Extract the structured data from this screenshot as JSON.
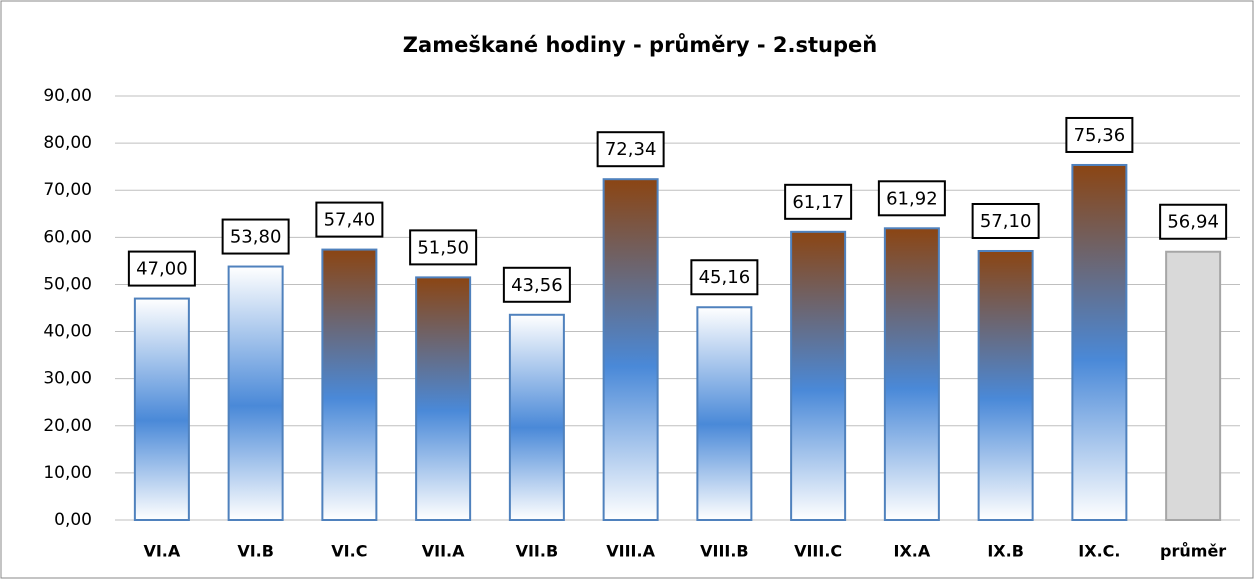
{
  "chart_data": {
    "type": "bar",
    "title": "Zameškané hodiny - průměry - 2.stupeň",
    "categories": [
      "VI.A",
      "VI.B",
      "VI.C",
      "VII.A",
      "VII.B",
      "VIII.A",
      "VIII.B",
      "VIII.C",
      "IX.A",
      "IX.B",
      "IX.C.",
      "průměr"
    ],
    "values": [
      47.0,
      53.8,
      57.4,
      51.5,
      43.56,
      72.34,
      45.16,
      61.17,
      61.92,
      57.1,
      75.36,
      56.94
    ],
    "value_labels": [
      "47,00",
      "53,80",
      "57,40",
      "51,50",
      "43,56",
      "72,34",
      "45,16",
      "61,17",
      "61,92",
      "57,10",
      "75,36",
      "56,94"
    ],
    "colors": [
      "#ffffff",
      "#ffffff",
      "#8b4513",
      "#8b4513",
      "#ffffff",
      "#8b4513",
      "#ffffff",
      "#8b4513",
      "#8b4513",
      "#8b4513",
      "#8b4513",
      "#d9d9d9"
    ],
    "ylim": [
      0,
      90
    ],
    "yticks": [
      {
        "value": 0,
        "label": "0,00"
      },
      {
        "value": 10,
        "label": "10,00"
      },
      {
        "value": 20,
        "label": "20,00"
      },
      {
        "value": 30,
        "label": "30,00"
      },
      {
        "value": 40,
        "label": "40,00"
      },
      {
        "value": 50,
        "label": "50,00"
      },
      {
        "value": 60,
        "label": "60,00"
      },
      {
        "value": 70,
        "label": "70,00"
      },
      {
        "value": 80,
        "label": "80,00"
      },
      {
        "value": 90,
        "label": "90,00"
      }
    ],
    "grid": true
  }
}
